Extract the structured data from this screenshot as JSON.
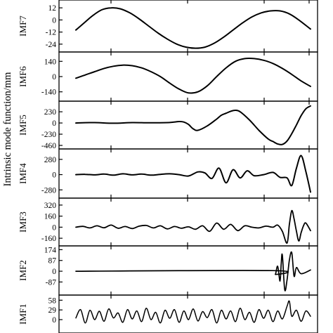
{
  "chart_data": {
    "type": "line",
    "ylabel": "Intrinsic mode function/mm",
    "x_tick_count": 4,
    "line_color": "#000000",
    "panels": [
      {
        "name": "IMF7",
        "yticks": [
          "12",
          "0",
          "-12",
          "-24"
        ],
        "ytick_values": [
          12,
          0,
          -12,
          -24
        ],
        "ylim": [
          -29,
          17
        ],
        "x": [
          0,
          0.03,
          0.07,
          0.11,
          0.15,
          0.19,
          0.23,
          0.27,
          0.31,
          0.35,
          0.39,
          0.43,
          0.47,
          0.51,
          0.55,
          0.59,
          0.63,
          0.67,
          0.71,
          0.75,
          0.79,
          0.83,
          0.87,
          0.91,
          0.95,
          1.0
        ],
        "y": [
          -10,
          -4,
          4,
          10,
          12,
          11,
          7,
          1,
          -6,
          -13,
          -19,
          -24,
          -27,
          -28,
          -27,
          -23,
          -17,
          -10,
          -3,
          3,
          7,
          9,
          9,
          6,
          0,
          -9
        ]
      },
      {
        "name": "IMF6",
        "yticks": [
          "140",
          "0",
          "-140"
        ],
        "ytick_values": [
          140,
          0,
          -140
        ],
        "ylim": [
          -200,
          200
        ],
        "x": [
          0,
          0.04,
          0.08,
          0.12,
          0.16,
          0.2,
          0.24,
          0.28,
          0.32,
          0.36,
          0.4,
          0.44,
          0.48,
          0.52,
          0.56,
          0.6,
          0.64,
          0.68,
          0.72,
          0.76,
          0.8,
          0.84,
          0.88,
          0.92,
          0.96,
          1.0
        ],
        "y": [
          -15,
          15,
          45,
          75,
          95,
          105,
          100,
          80,
          45,
          0,
          -60,
          -115,
          -150,
          -140,
          -85,
          0,
          80,
          140,
          165,
          165,
          150,
          120,
          75,
          20,
          -40,
          -90
        ]
      },
      {
        "name": "IMF5",
        "yticks": [
          "230",
          "0",
          "-230",
          "-460"
        ],
        "ytick_values": [
          230,
          0,
          -230,
          -460
        ],
        "ylim": [
          -475,
          390
        ],
        "x": [
          0,
          0.08,
          0.16,
          0.24,
          0.32,
          0.4,
          0.44,
          0.46,
          0.48,
          0.5,
          0.52,
          0.56,
          0.6,
          0.62,
          0.64,
          0.66,
          0.68,
          0.7,
          0.74,
          0.78,
          0.82,
          0.84,
          0.86,
          0.88,
          0.9,
          0.92,
          0.94,
          0.96,
          0.98,
          1.0
        ],
        "y": [
          0,
          8,
          -5,
          8,
          3,
          10,
          30,
          20,
          -30,
          -120,
          -150,
          -60,
          80,
          160,
          200,
          240,
          260,
          230,
          60,
          -150,
          -330,
          -380,
          -430,
          -440,
          -370,
          -220,
          -40,
          150,
          290,
          350
        ]
      },
      {
        "name": "IMF4",
        "yticks": [
          "280",
          "0",
          "-280"
        ],
        "ytick_values": [
          280,
          0,
          -280
        ],
        "ylim": [
          -380,
          420
        ],
        "x": [
          0,
          0.04,
          0.08,
          0.12,
          0.16,
          0.2,
          0.24,
          0.28,
          0.32,
          0.36,
          0.4,
          0.44,
          0.48,
          0.52,
          0.55,
          0.58,
          0.61,
          0.64,
          0.67,
          0.7,
          0.73,
          0.76,
          0.8,
          0.84,
          0.87,
          0.9,
          0.92,
          0.94,
          0.96,
          0.98,
          1.0
        ],
        "y": [
          0,
          5,
          -5,
          10,
          -10,
          15,
          -5,
          10,
          -10,
          5,
          15,
          0,
          -25,
          50,
          30,
          -70,
          120,
          -150,
          90,
          -60,
          70,
          -20,
          0,
          40,
          -50,
          -60,
          -200,
          120,
          350,
          60,
          -320
        ]
      },
      {
        "name": "IMF3",
        "yticks": [
          "320",
          "160",
          "0",
          "-160"
        ],
        "ytick_values": [
          320,
          160,
          0,
          -160
        ],
        "ylim": [
          -230,
          380
        ],
        "x": [
          0,
          0.03,
          0.06,
          0.09,
          0.12,
          0.15,
          0.18,
          0.21,
          0.24,
          0.27,
          0.3,
          0.33,
          0.36,
          0.39,
          0.42,
          0.45,
          0.48,
          0.51,
          0.54,
          0.57,
          0.6,
          0.63,
          0.66,
          0.69,
          0.72,
          0.75,
          0.78,
          0.81,
          0.84,
          0.86,
          0.88,
          0.9,
          0.91,
          0.92,
          0.93,
          0.94,
          0.95,
          0.96,
          0.97,
          0.98,
          1.0
        ],
        "y": [
          0,
          12,
          -10,
          20,
          -8,
          30,
          -15,
          10,
          -20,
          15,
          25,
          -10,
          20,
          -25,
          10,
          -15,
          5,
          -30,
          20,
          -60,
          60,
          -30,
          40,
          -50,
          20,
          0,
          -10,
          15,
          0,
          30,
          -60,
          -230,
          40,
          240,
          120,
          -60,
          -200,
          -80,
          20,
          60,
          -50
        ]
      },
      {
        "name": "IMF2",
        "yticks": [
          "174",
          "87",
          "0",
          "-87"
        ],
        "ytick_values": [
          174,
          87,
          0,
          -87
        ],
        "ylim": [
          -170,
          182
        ],
        "x": [
          0,
          0.84,
          0.85,
          0.86,
          0.87,
          0.875,
          0.88,
          0.89,
          0.9,
          0.91,
          0.92,
          0.93,
          0.94,
          0.96,
          1.0
        ],
        "y": [
          0,
          5,
          -25,
          40,
          -80,
          60,
          130,
          -150,
          -70,
          90,
          150,
          -40,
          30,
          -20,
          10
        ]
      },
      {
        "name": "IMF1",
        "yticks": [
          "58",
          "29",
          "0"
        ],
        "ytick_values": [
          58,
          29,
          0
        ],
        "ylim": [
          -40,
          65
        ],
        "x": [
          0,
          0.02,
          0.04,
          0.06,
          0.08,
          0.1,
          0.12,
          0.14,
          0.16,
          0.18,
          0.2,
          0.22,
          0.24,
          0.26,
          0.28,
          0.3,
          0.32,
          0.34,
          0.36,
          0.38,
          0.4,
          0.42,
          0.44,
          0.46,
          0.48,
          0.5,
          0.52,
          0.54,
          0.56,
          0.58,
          0.6,
          0.62,
          0.64,
          0.66,
          0.68,
          0.7,
          0.72,
          0.74,
          0.76,
          0.78,
          0.8,
          0.82,
          0.84,
          0.86,
          0.88,
          0.9,
          0.91,
          0.92,
          0.94,
          0.96,
          0.98,
          1.0
        ],
        "y": [
          5,
          30,
          -10,
          28,
          0,
          25,
          -5,
          32,
          5,
          20,
          -8,
          30,
          2,
          26,
          -6,
          34,
          0,
          22,
          -10,
          28,
          4,
          30,
          -8,
          26,
          0,
          32,
          -4,
          24,
          6,
          30,
          -10,
          28,
          2,
          26,
          -6,
          34,
          0,
          22,
          -8,
          30,
          4,
          28,
          -6,
          26,
          2,
          40,
          55,
          10,
          28,
          -5,
          26,
          10
        ]
      }
    ]
  }
}
